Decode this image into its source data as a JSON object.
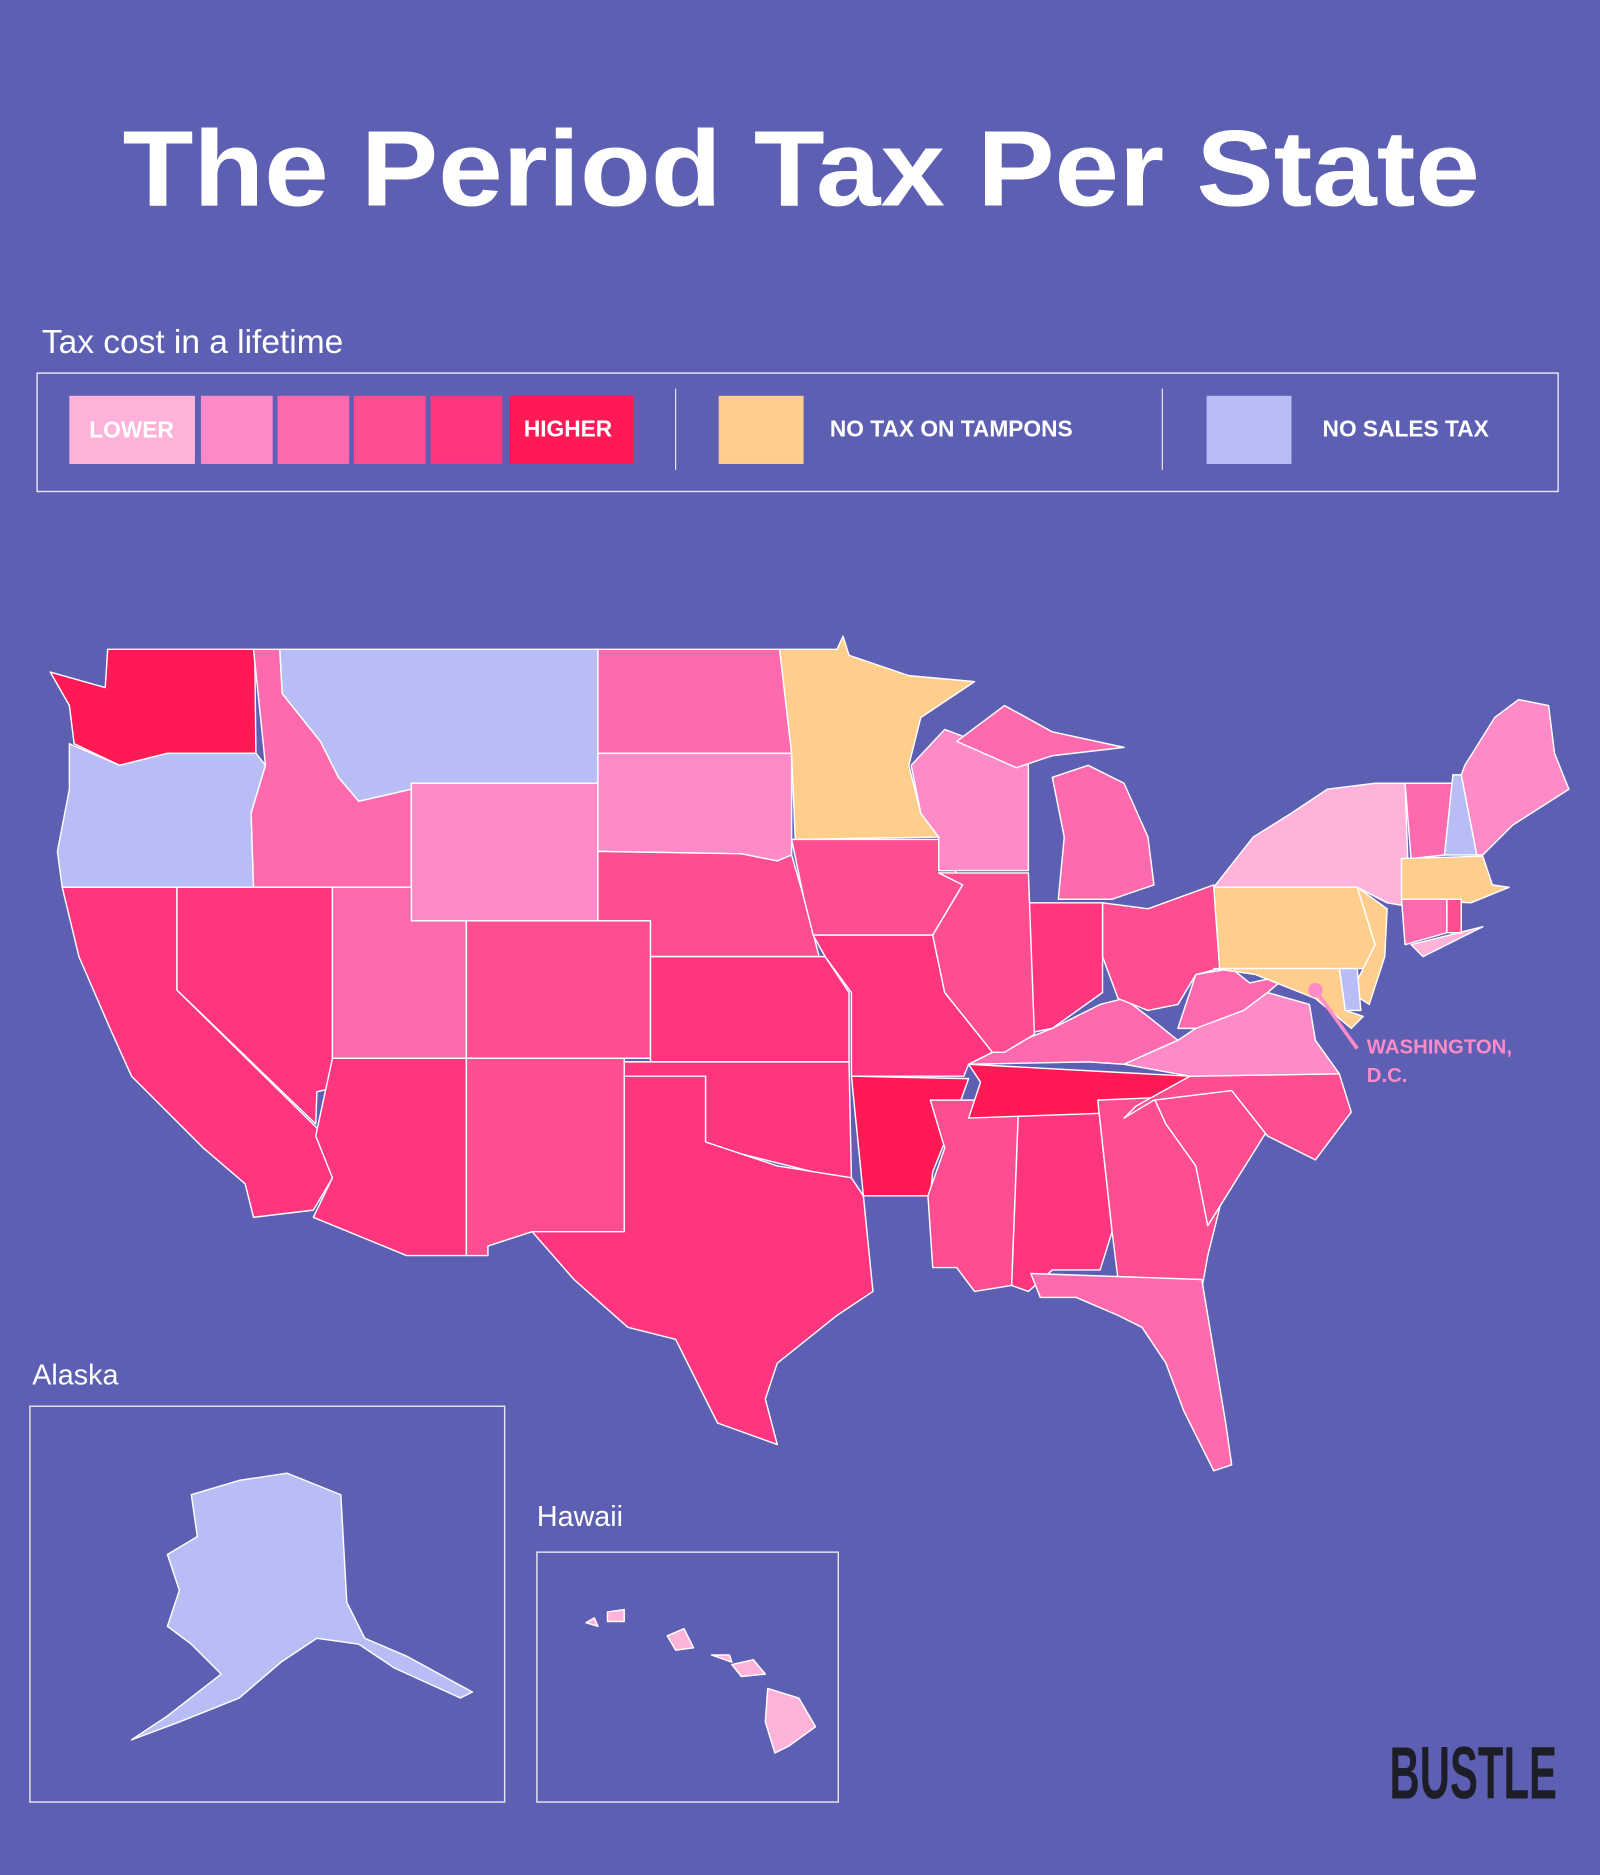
{
  "title": "The Period Tax Per State",
  "legend": {
    "heading": "Tax cost in a lifetime",
    "scale_low_label": "LOWER",
    "scale_high_label": "HIGHER",
    "scale_colors": [
      "#FFB3DA",
      "#FF8AC8",
      "#FF6AAE",
      "#FF4D91",
      "#FF3580",
      "#FF1A55"
    ],
    "no_tampon_tax_label": "NO TAX ON TAMPONS",
    "no_tampon_tax_color": "#FFCE8C",
    "no_sales_tax_label": "NO SALES TAX",
    "no_sales_tax_color": "#B8BDF5"
  },
  "colors": {
    "background": "#5D5FB3",
    "border": "#FFFFFF",
    "dc_marker": "#FF8AC8"
  },
  "map": {
    "states": {
      "WA": "level6",
      "OR": "nosales",
      "CA": "level5",
      "NV": "level5",
      "ID": "level3",
      "MT": "nosales",
      "WY": "level2",
      "UT": "level3",
      "CO": "level4",
      "AZ": "level5",
      "NM": "level4",
      "ND": "level3",
      "SD": "level2",
      "NE": "level4",
      "KS": "level5",
      "OK": "level5",
      "TX": "level5",
      "MN": "tampon",
      "IA": "level4",
      "MO": "level5",
      "AR": "level6",
      "MS": "level4",
      "AL": "level5",
      "TN": "level6",
      "KY": "level3",
      "GA": "level4",
      "FL": "level3",
      "SC": "level4",
      "NC": "level4",
      "VA": "level2",
      "WV": "level3",
      "OH": "level4",
      "IN": "level5",
      "IL": "level4",
      "WI": "level2",
      "MI": "level3",
      "PA": "tampon",
      "NY": "level1",
      "NJ": "tampon",
      "DE": "nosales",
      "MD": "tampon",
      "VT": "level3",
      "NH": "nosales",
      "ME": "level2",
      "MA": "tampon",
      "CT": "level3",
      "RI": "level4",
      "AK": "nosales",
      "HI": "level1"
    },
    "dc_label_line1": "WASHINGTON,",
    "dc_label_line2": "D.C.",
    "alaska_label": "Alaska",
    "hawaii_label": "Hawaii"
  },
  "brand": "BUSTLE"
}
